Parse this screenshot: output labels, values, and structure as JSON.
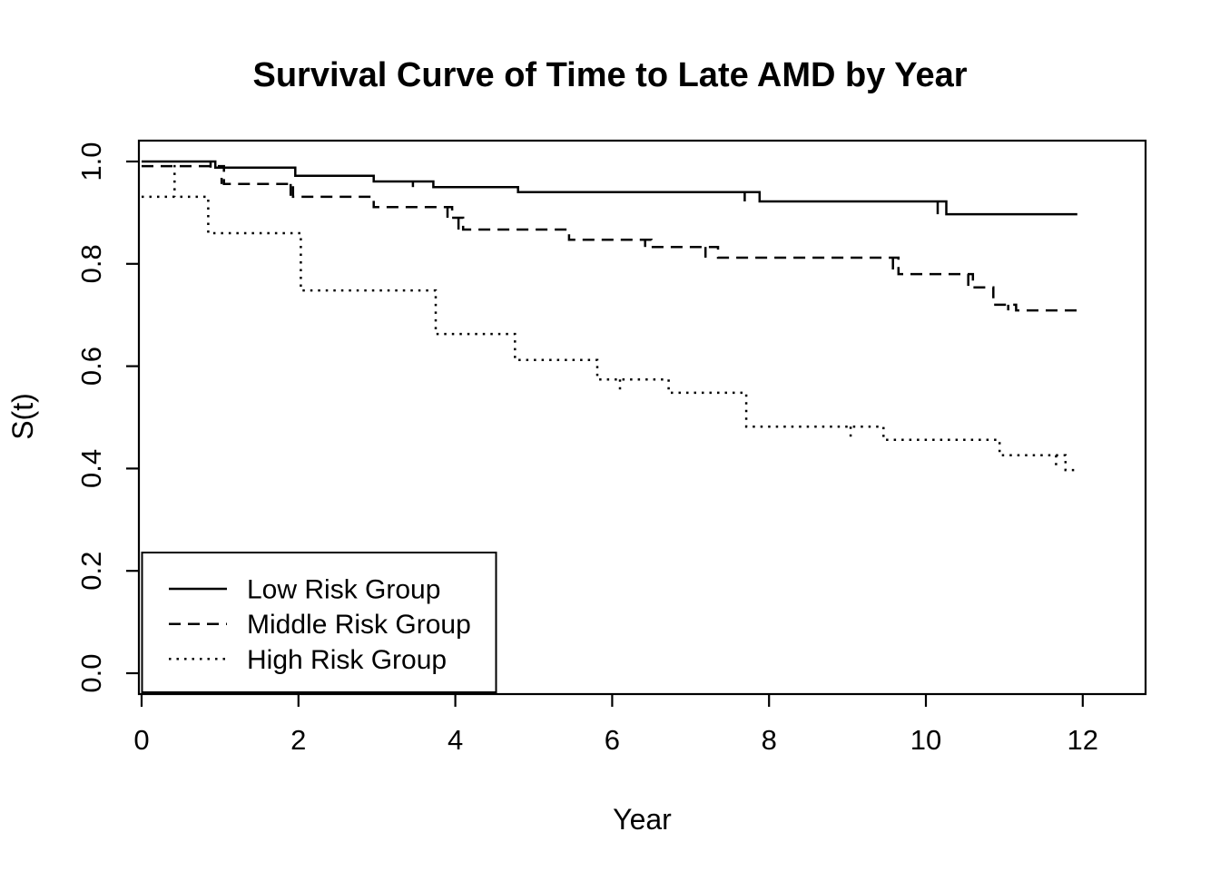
{
  "page": {
    "background": "#ffffff",
    "foreground": "#000000"
  },
  "chart_data": {
    "type": "line",
    "variant": "kaplan-meier-survival-step",
    "title": "Survival Curve of Time to Late AMD by Year",
    "xlabel": "Year",
    "ylabel": "S(t)",
    "x_ticks": [
      "0",
      "2",
      "4",
      "6",
      "8",
      "10",
      "12"
    ],
    "x_tick_values": [
      0,
      2,
      4,
      6,
      8,
      10,
      12
    ],
    "y_ticks": [
      "0.0",
      "0.2",
      "0.4",
      "0.6",
      "0.8",
      "1.0"
    ],
    "y_tick_values": [
      0.0,
      0.2,
      0.4,
      0.6,
      0.8,
      1.0
    ],
    "xlim": [
      0,
      12.8
    ],
    "ylim": [
      0,
      1.04
    ],
    "grid": false,
    "line_color": "#000000",
    "legend": {
      "position": "bottom-left",
      "entries": [
        "Low Risk Group",
        "Middle Risk Group",
        "High Risk Group"
      ],
      "styles": [
        "solid",
        "dashed",
        "dotted"
      ]
    },
    "series": [
      {
        "name": "Low Risk Group",
        "line_style": "solid",
        "start": [
          0,
          1.0
        ],
        "steps": [
          [
            0.94,
            0.988
          ],
          [
            1.96,
            0.972
          ],
          [
            2.96,
            0.961
          ],
          [
            3.72,
            0.95
          ],
          [
            4.8,
            0.94
          ],
          [
            7.88,
            0.922
          ],
          [
            10.26,
            0.897
          ]
        ],
        "end_time": 11.93,
        "censor_marks": [
          [
            0.88,
            1.0,
            0.988
          ],
          [
            3.46,
            0.961,
            0.95
          ],
          [
            7.69,
            0.94,
            0.922
          ],
          [
            10.15,
            0.922,
            0.897
          ]
        ]
      },
      {
        "name": "Middle Risk Group",
        "line_style": "dashed",
        "start": [
          0,
          0.991
        ],
        "steps": [
          [
            1.05,
            0.956
          ],
          [
            1.93,
            0.931
          ],
          [
            2.96,
            0.911
          ],
          [
            3.96,
            0.89
          ],
          [
            4.1,
            0.867
          ],
          [
            5.45,
            0.847
          ],
          [
            6.5,
            0.833
          ],
          [
            7.35,
            0.812
          ],
          [
            9.65,
            0.78
          ],
          [
            10.6,
            0.754
          ],
          [
            10.86,
            0.72
          ],
          [
            11.15,
            0.709
          ]
        ],
        "end_time": 11.93,
        "censor_marks": [
          [
            1.02,
            0.968,
            0.956
          ],
          [
            1.9,
            0.956,
            0.931
          ],
          [
            3.9,
            0.911,
            0.89
          ],
          [
            4.04,
            0.89,
            0.867
          ],
          [
            6.42,
            0.847,
            0.833
          ],
          [
            7.19,
            0.833,
            0.812
          ],
          [
            9.58,
            0.812,
            0.78
          ],
          [
            10.54,
            0.78,
            0.754
          ],
          [
            11.05,
            0.72,
            0.709
          ]
        ]
      },
      {
        "name": "High Risk Group",
        "line_style": "dotted",
        "start": [
          0,
          0.931
        ],
        "steps": [
          [
            0.85,
            0.86
          ],
          [
            2.03,
            0.748
          ],
          [
            3.75,
            0.663
          ],
          [
            4.76,
            0.612
          ],
          [
            5.81,
            0.574
          ],
          [
            6.72,
            0.548
          ],
          [
            7.71,
            0.482
          ],
          [
            9.46,
            0.456
          ],
          [
            10.94,
            0.426
          ],
          [
            11.78,
            0.397
          ]
        ],
        "end_time": 11.91,
        "censor_marks": [
          [
            0.42,
            0.993,
            0.931
          ],
          [
            6.1,
            0.574,
            0.548
          ],
          [
            9.04,
            0.482,
            0.456
          ],
          [
            11.66,
            0.426,
            0.397
          ]
        ]
      }
    ]
  }
}
